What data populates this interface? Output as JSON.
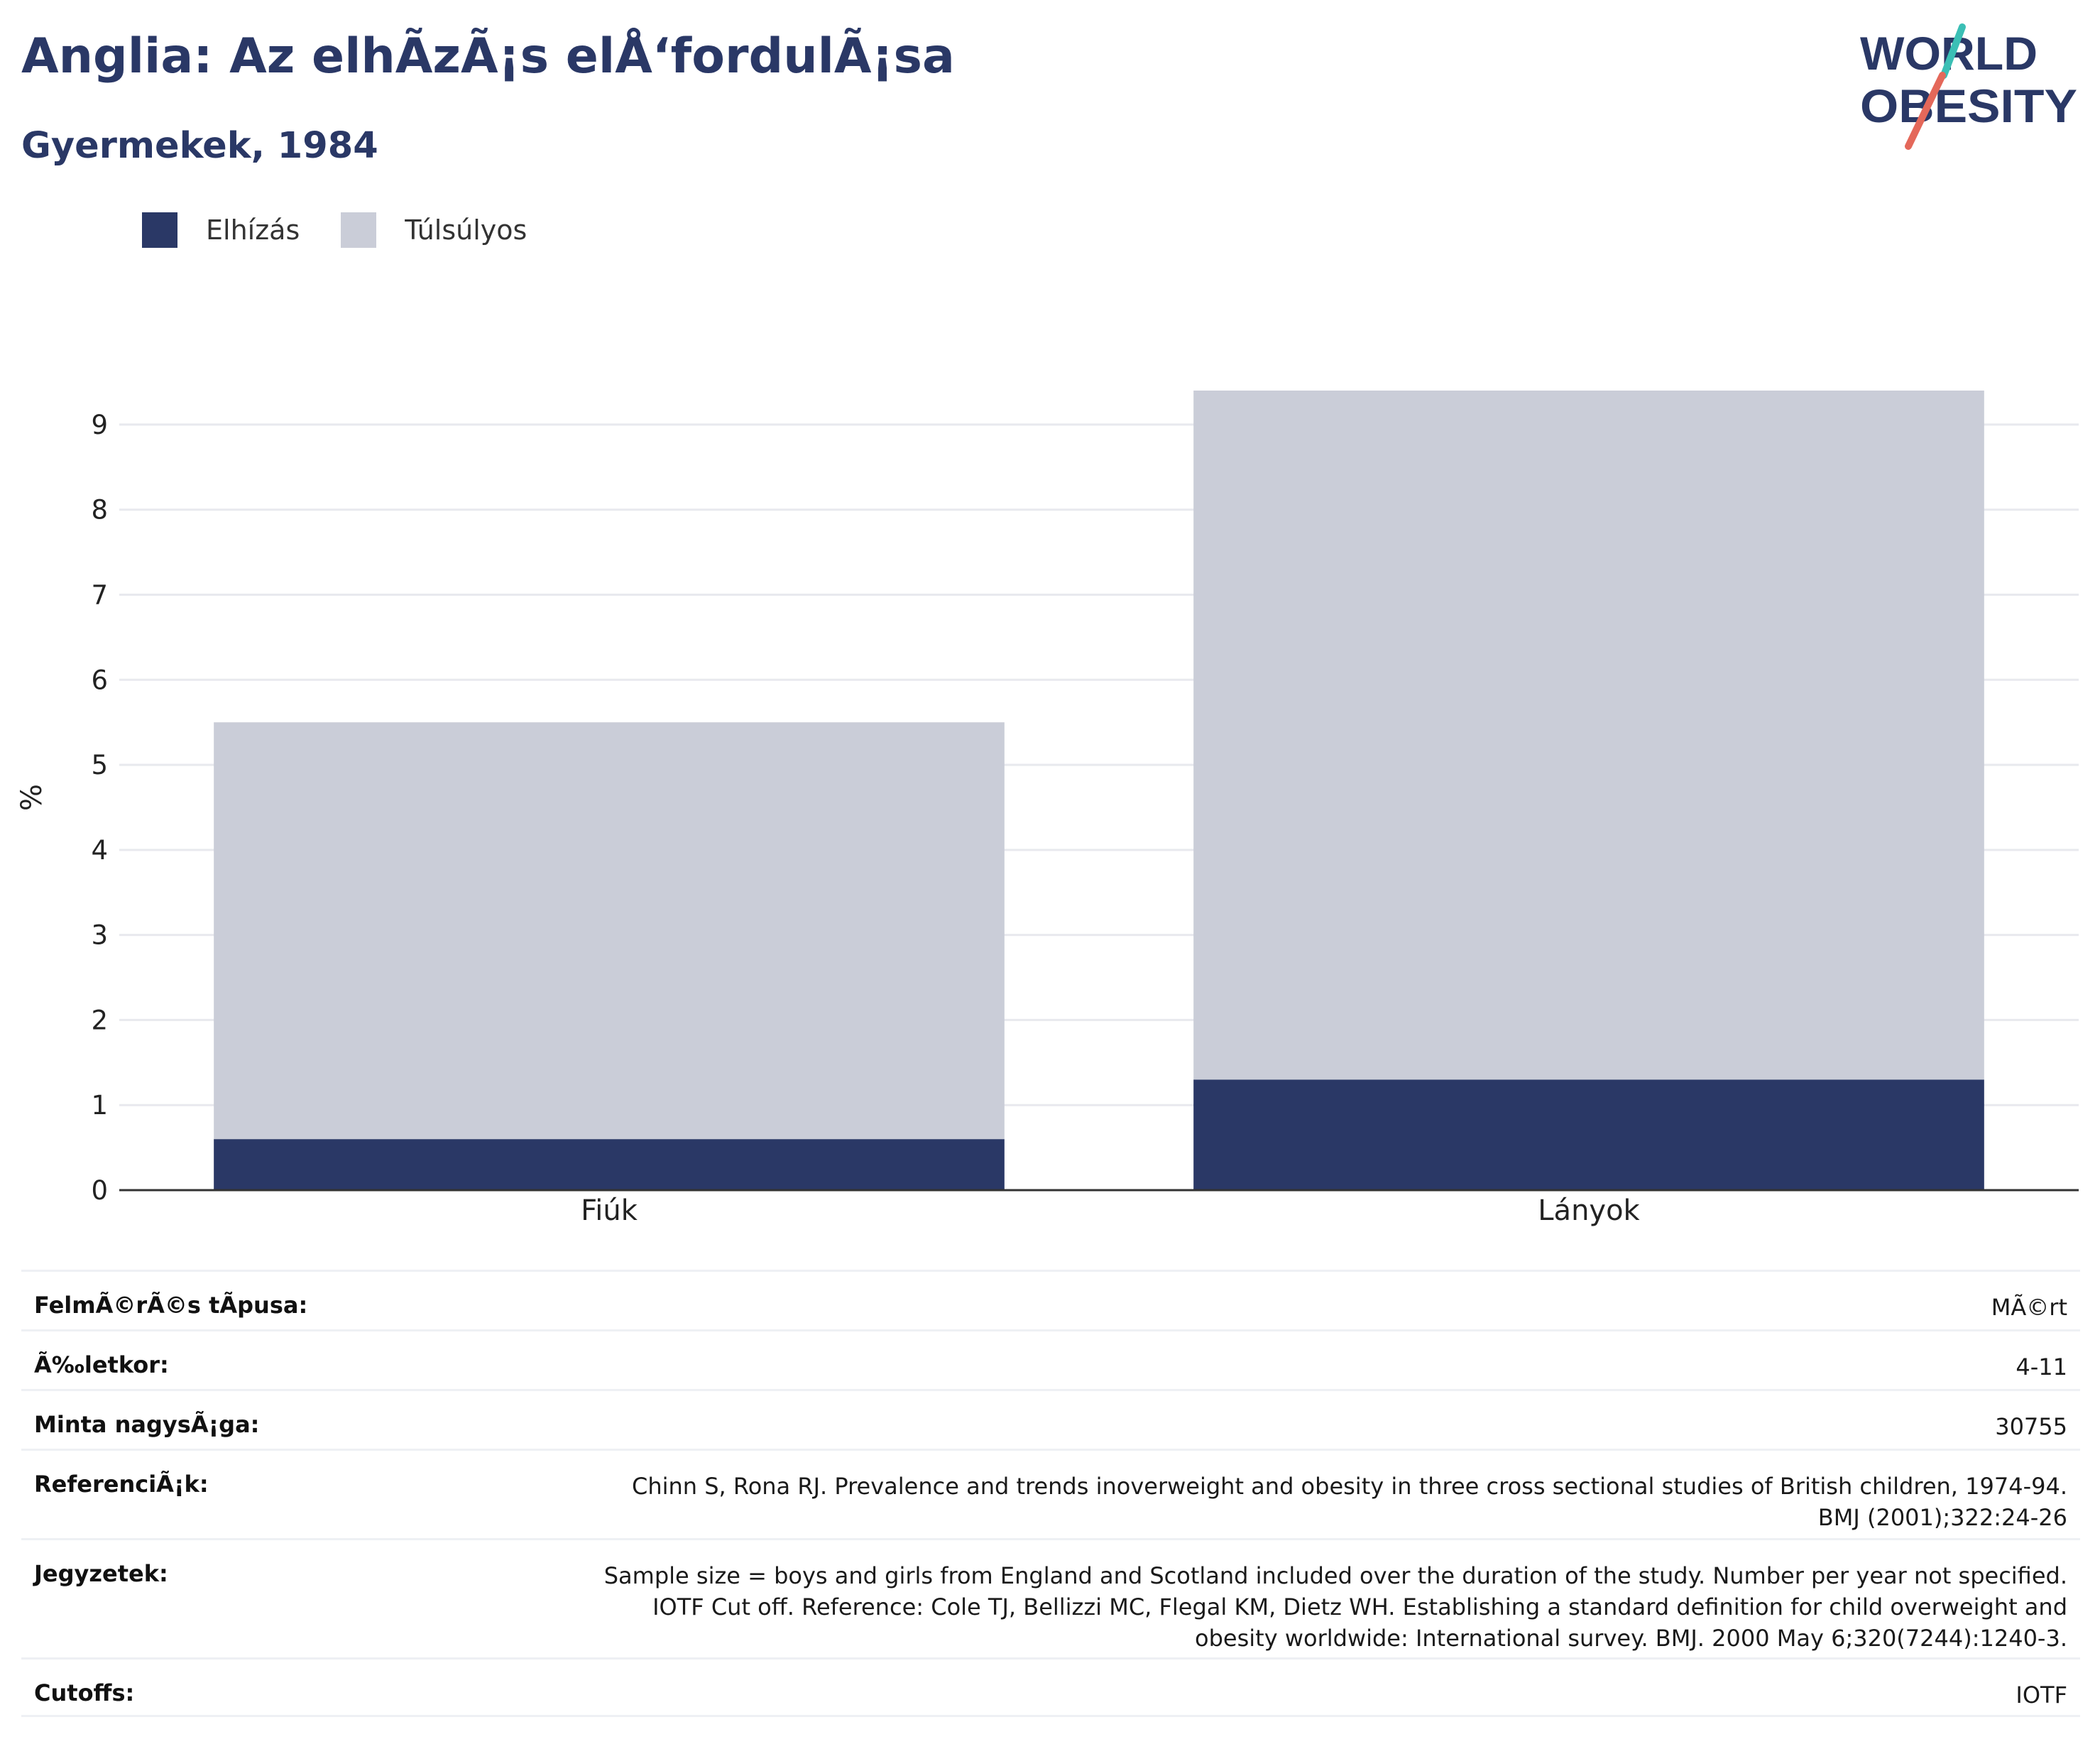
{
  "header": {
    "title": "Anglia: Az elhÃzÃ¡s elÅ‘fordulÃ¡sa",
    "subtitle": "Gyermekek, 1984"
  },
  "logo": {
    "line1": "WORLD",
    "line2": "OBESITY",
    "accent_teal": "#3bbfb5",
    "accent_coral": "#e4685a"
  },
  "colors": {
    "obesity": "#2a3866",
    "overweight": "#cacdd8",
    "grid": "#e8e9ee",
    "axis": "#333333",
    "title": "#2a3866"
  },
  "legend": [
    {
      "label": "Elhízás",
      "color": "#2a3866"
    },
    {
      "label": "Túlsúlyos",
      "color": "#cacdd8"
    }
  ],
  "chart_data": {
    "type": "bar",
    "stacked": true,
    "categories": [
      "Fiúk",
      "Lányok"
    ],
    "series": [
      {
        "name": "Elhízás",
        "values": [
          0.6,
          1.3
        ]
      },
      {
        "name": "Túlsúlyos",
        "values": [
          4.9,
          8.1
        ]
      }
    ],
    "ylabel": "%",
    "xlabel": "",
    "ylim": [
      0,
      9.4
    ],
    "yticks": [
      0,
      1,
      2,
      3,
      4,
      5,
      6,
      7,
      8,
      9
    ],
    "grid": true,
    "legend_position": "top-left"
  },
  "info": [
    {
      "label": "FelmÃ©rÃ©s tÃpusa:",
      "value": "MÃ©rt"
    },
    {
      "label": "Ã‰letkor:",
      "value": "4-11"
    },
    {
      "label": "Minta nagysÃ¡ga:",
      "value": "30755"
    },
    {
      "label": "ReferenciÃ¡k:",
      "value": "Chinn S, Rona RJ. Prevalence and trends inoverweight and obesity in three cross sectional studies of British children, 1974-94. BMJ (2001);322:24-26"
    },
    {
      "label": "Jegyzetek:",
      "value": "Sample size = boys and girls from England and Scotland included over the duration of the study. Number per year not specified. IOTF Cut off. Reference: Cole TJ, Bellizzi MC, Flegal KM, Dietz WH. Establishing a standard definition for child overweight and obesity worldwide: International survey. BMJ. 2000 May 6;320(7244):1240-3."
    },
    {
      "label": "Cutoffs:",
      "value": "IOTF"
    }
  ]
}
